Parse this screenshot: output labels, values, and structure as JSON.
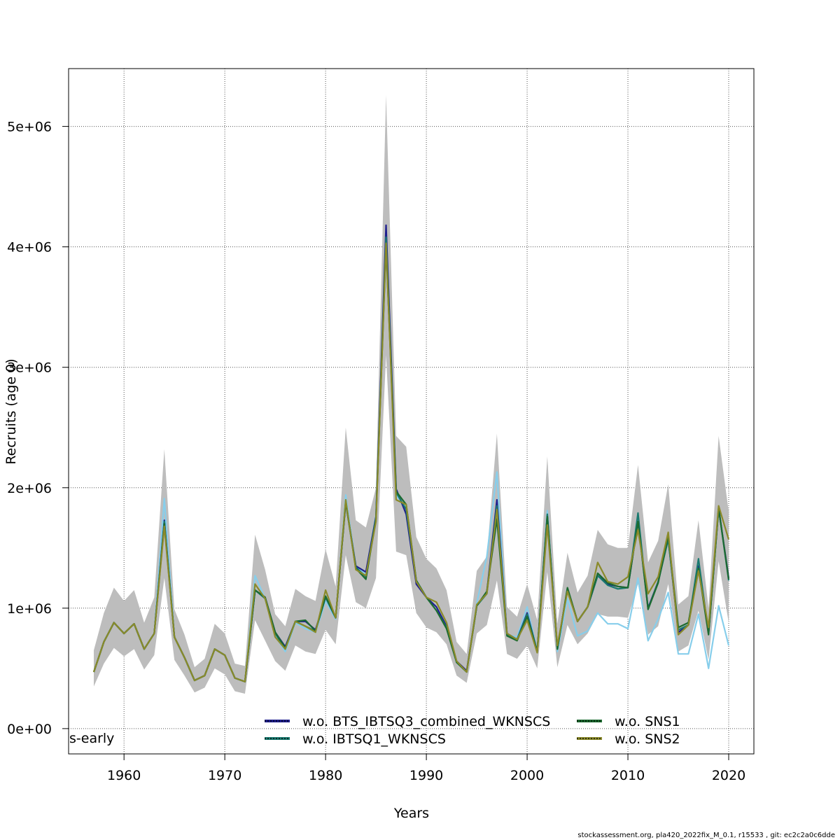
{
  "chart_data": {
    "type": "line",
    "xlabel": "Years",
    "ylabel": "Recruits (age 0)",
    "xlim": [
      1954.5,
      2022.5
    ],
    "ylim": [
      -210000,
      5480000
    ],
    "x_ticks": [
      1960,
      1970,
      1980,
      1990,
      2000,
      2010,
      2020
    ],
    "x_tick_labels": [
      "1960",
      "1970",
      "1980",
      "1990",
      "2000",
      "2010",
      "2020"
    ],
    "y_ticks": [
      0,
      1000000,
      2000000,
      3000000,
      4000000,
      5000000
    ],
    "y_tick_labels": [
      "0e+00",
      "1e+06",
      "2e+06",
      "3e+06",
      "4e+06",
      "5e+06"
    ],
    "grid": true,
    "corner_label": "s-early",
    "footer": "stockassessment.org, pla420_2022fix_M_0.1, r15533 , git: ec2c2a0c6dde",
    "legend": {
      "position": "bottom",
      "entries": [
        {
          "label": "w.o. BTS_IBTSQ3_combined_WKNSCS",
          "color": "#1f1f8f",
          "style": "dotted-outline"
        },
        {
          "label": "w.o. IBTSQ1_WKNSCS",
          "color": "#1a7a70",
          "style": "dotted-outline"
        },
        {
          "label": "w.o. SNS1",
          "color": "#1c6b30",
          "style": "dotted-outline"
        },
        {
          "label": "w.o. SNS2",
          "color": "#8a8a2a",
          "style": "dotted-outline"
        }
      ]
    },
    "x": [
      1957,
      1958,
      1959,
      1960,
      1961,
      1962,
      1963,
      1964,
      1965,
      1966,
      1967,
      1968,
      1969,
      1970,
      1971,
      1972,
      1973,
      1974,
      1975,
      1976,
      1977,
      1978,
      1979,
      1980,
      1981,
      1982,
      1983,
      1984,
      1985,
      1986,
      1987,
      1988,
      1989,
      1990,
      1991,
      1992,
      1993,
      1994,
      1995,
      1996,
      1997,
      1998,
      1999,
      2000,
      2001,
      2002,
      2003,
      2004,
      2005,
      2006,
      2007,
      2008,
      2009,
      2010,
      2011,
      2012,
      2013,
      2014,
      2015,
      2016,
      2017,
      2018,
      2019,
      2020
    ],
    "band": {
      "lower": [
        350000,
        540000,
        670000,
        600000,
        660000,
        490000,
        610000,
        1250000,
        570000,
        440000,
        300000,
        340000,
        500000,
        450000,
        310000,
        290000,
        900000,
        730000,
        560000,
        480000,
        690000,
        640000,
        620000,
        820000,
        700000,
        1440000,
        1050000,
        1000000,
        1250000,
        3100000,
        1470000,
        1440000,
        960000,
        840000,
        800000,
        700000,
        440000,
        380000,
        790000,
        860000,
        1230000,
        620000,
        580000,
        690000,
        500000,
        1300000,
        510000,
        860000,
        700000,
        790000,
        950000,
        930000,
        930000,
        920000,
        1200000,
        780000,
        850000,
        1200000,
        640000,
        690000,
        980000,
        570000,
        1390000,
        880000
      ],
      "upper": [
        650000,
        960000,
        1170000,
        1060000,
        1150000,
        880000,
        1090000,
        2320000,
        990000,
        780000,
        510000,
        580000,
        870000,
        790000,
        540000,
        520000,
        1610000,
        1320000,
        950000,
        850000,
        1160000,
        1100000,
        1060000,
        1490000,
        1180000,
        2500000,
        1730000,
        1670000,
        2000000,
        5260000,
        2430000,
        2340000,
        1590000,
        1410000,
        1330000,
        1150000,
        720000,
        620000,
        1310000,
        1430000,
        2450000,
        1010000,
        930000,
        1200000,
        900000,
        2260000,
        870000,
        1460000,
        1130000,
        1270000,
        1650000,
        1530000,
        1500000,
        1500000,
        2190000,
        1380000,
        1560000,
        2030000,
        1030000,
        1100000,
        1730000,
        1000000,
        2430000,
        1800000
      ]
    },
    "series": [
      {
        "name": "w.o. BTS_IBTSQ3_combined_WKNSCS",
        "color": "#1f1f8f",
        "values": [
          470000,
          720000,
          880000,
          790000,
          870000,
          660000,
          790000,
          1730000,
          760000,
          590000,
          400000,
          440000,
          660000,
          610000,
          420000,
          390000,
          1150000,
          1090000,
          800000,
          680000,
          890000,
          890000,
          820000,
          1090000,
          920000,
          1880000,
          1350000,
          1300000,
          1760000,
          4180000,
          1990000,
          1780000,
          1200000,
          1090000,
          1010000,
          850000,
          560000,
          480000,
          1020000,
          1130000,
          1900000,
          790000,
          740000,
          960000,
          640000,
          1770000,
          670000,
          1160000,
          890000,
          1010000,
          1270000,
          1200000,
          1180000,
          1170000,
          1720000,
          1000000,
          1220000,
          1580000,
          800000,
          860000,
          1350000,
          790000,
          1830000,
          1250000
        ]
      },
      {
        "name": "w.o. IBTSQ1_WKNSCS",
        "color": "#1a7a70",
        "values": [
          470000,
          720000,
          880000,
          790000,
          870000,
          660000,
          790000,
          1720000,
          760000,
          590000,
          400000,
          440000,
          660000,
          610000,
          420000,
          390000,
          1150000,
          1080000,
          790000,
          660000,
          890000,
          850000,
          810000,
          1090000,
          920000,
          1890000,
          1340000,
          1260000,
          1750000,
          4080000,
          1960000,
          1820000,
          1230000,
          1090000,
          980000,
          840000,
          550000,
          470000,
          1020000,
          1120000,
          1850000,
          780000,
          740000,
          950000,
          640000,
          1780000,
          660000,
          1160000,
          890000,
          1010000,
          1270000,
          1190000,
          1160000,
          1170000,
          1790000,
          990000,
          1220000,
          1570000,
          820000,
          860000,
          1410000,
          790000,
          1830000,
          1230000
        ]
      },
      {
        "name": "w.o. SNS1",
        "color": "#1c6b30",
        "values": [
          470000,
          720000,
          880000,
          790000,
          870000,
          660000,
          790000,
          1700000,
          760000,
          590000,
          400000,
          440000,
          660000,
          610000,
          420000,
          390000,
          1150000,
          1090000,
          800000,
          670000,
          890000,
          900000,
          810000,
          1100000,
          920000,
          1880000,
          1330000,
          1240000,
          1740000,
          4010000,
          1970000,
          1860000,
          1230000,
          1090000,
          980000,
          830000,
          550000,
          470000,
          1020000,
          1140000,
          1740000,
          770000,
          730000,
          930000,
          640000,
          1760000,
          660000,
          1170000,
          890000,
          1010000,
          1290000,
          1210000,
          1180000,
          1170000,
          1720000,
          990000,
          1210000,
          1600000,
          840000,
          880000,
          1330000,
          780000,
          1830000,
          1240000
        ]
      },
      {
        "name": "w.o. SNS2",
        "color": "#8a8a2a",
        "values": [
          470000,
          720000,
          880000,
          790000,
          870000,
          660000,
          790000,
          1680000,
          760000,
          590000,
          400000,
          440000,
          660000,
          610000,
          420000,
          390000,
          1200000,
          1080000,
          760000,
          660000,
          890000,
          850000,
          800000,
          1150000,
          920000,
          1900000,
          1320000,
          1270000,
          1720000,
          4030000,
          1900000,
          1860000,
          1220000,
          1090000,
          1050000,
          880000,
          560000,
          470000,
          1030000,
          1120000,
          1820000,
          790000,
          740000,
          900000,
          630000,
          1690000,
          690000,
          1140000,
          890000,
          1010000,
          1380000,
          1220000,
          1200000,
          1260000,
          1650000,
          1120000,
          1260000,
          1630000,
          780000,
          860000,
          1310000,
          840000,
          1850000,
          1570000
        ]
      },
      {
        "color": "#87ceeb",
        "values": [
          470000,
          720000,
          880000,
          790000,
          870000,
          660000,
          790000,
          1910000,
          760000,
          590000,
          400000,
          440000,
          660000,
          610000,
          420000,
          390000,
          1270000,
          1080000,
          770000,
          640000,
          880000,
          830000,
          800000,
          1060000,
          910000,
          1940000,
          1340000,
          1280000,
          1770000,
          4060000,
          1940000,
          1830000,
          1210000,
          1090000,
          1010000,
          850000,
          550000,
          470000,
          1040000,
          1430000,
          2130000,
          780000,
          760000,
          1010000,
          640000,
          1810000,
          640000,
          1080000,
          770000,
          810000,
          960000,
          870000,
          870000,
          830000,
          1250000,
          730000,
          910000,
          1130000,
          620000,
          620000,
          950000,
          500000,
          1020000,
          690000
        ]
      }
    ]
  }
}
